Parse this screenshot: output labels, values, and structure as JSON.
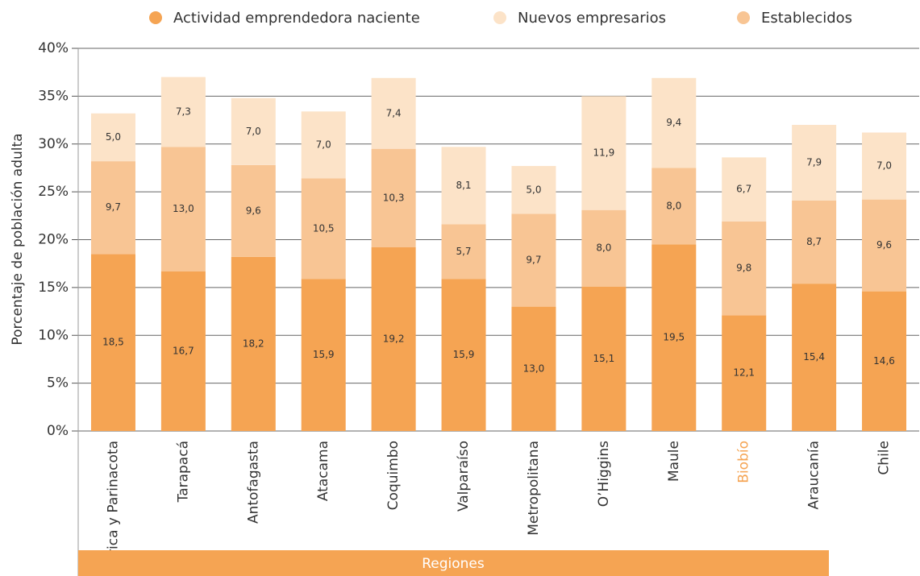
{
  "chart_data": {
    "type": "stacked_bar",
    "y_label": "Porcentaje de población adulta",
    "x_group_label": "Regiones",
    "group_color": "#f5a453",
    "highlight": 9,
    "highlight_color": "#f5a453",
    "categories": [
      "Arica y Parinacota",
      "Tarapacá",
      "Antofagasta",
      "Atacama",
      "Coquimbo",
      "Valparaíso",
      "Metropolitana",
      "O’Higgins",
      "Maule",
      "Biobío",
      "Araucanía",
      "Chile"
    ],
    "series": [
      {
        "name": "Actividad emprendedora naciente",
        "color": "#f5a453",
        "values": [
          18.5,
          16.7,
          18.2,
          15.9,
          19.2,
          15.9,
          13.0,
          15.1,
          19.5,
          12.1,
          15.4,
          14.6
        ],
        "value_labels": [
          "18,5",
          "16,7",
          "18,2",
          "15,9",
          "19,2",
          "15,9",
          "13,0",
          "15,1",
          "19,5",
          "12,1",
          "15,4",
          "14,6"
        ]
      },
      {
        "name": "Nuevos empresarios",
        "color": "#fce3c8",
        "values": [
          5.0,
          7.3,
          7.0,
          7.0,
          7.4,
          8.1,
          5.0,
          11.9,
          9.4,
          6.7,
          7.9,
          7.0
        ],
        "value_labels": [
          "5,0",
          "7,3",
          "7,0",
          "7,0",
          "7,4",
          "8,1",
          "5,0",
          "11,9",
          "9,4",
          "6,7",
          "7,9",
          "7,0"
        ]
      },
      {
        "name": "Establecidos",
        "color": "#f8c594",
        "values": [
          9.7,
          13.0,
          9.6,
          10.5,
          10.3,
          5.7,
          9.7,
          8.0,
          8.0,
          9.8,
          8.7,
          9.6
        ],
        "value_labels": [
          "9,7",
          "13,0",
          "9,6",
          "10,5",
          "10,3",
          "5,7",
          "9,7",
          "8,0",
          "8,0",
          "9,8",
          "8,7",
          "9,6"
        ]
      }
    ],
    "ylim": [
      0,
      40
    ],
    "yticks": [
      {
        "value": 0,
        "label": "0%"
      },
      {
        "value": 5,
        "label": "5%"
      },
      {
        "value": 10,
        "label": "10%"
      },
      {
        "value": 15,
        "label": "15%"
      },
      {
        "value": 20,
        "label": "20%"
      },
      {
        "value": 25,
        "label": "25%"
      },
      {
        "value": 30,
        "label": "30%"
      },
      {
        "value": 35,
        "label": "35%"
      },
      {
        "value": 40,
        "label": "40%"
      }
    ],
    "grid": true
  }
}
